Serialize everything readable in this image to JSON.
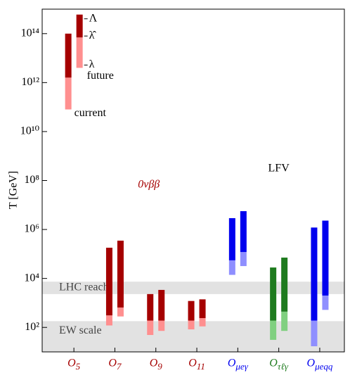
{
  "chart_data": {
    "type": "range_bar",
    "y_label": "T [GeV]",
    "log_y": true,
    "grid": false,
    "ylim": [
      10,
      1000000000000000.0
    ],
    "yticks": [
      {
        "value": 100,
        "label": "10²"
      },
      {
        "value": 10000,
        "label": "10⁴"
      },
      {
        "value": 1000000,
        "label": "10⁶"
      },
      {
        "value": 100000000,
        "label": "10⁸"
      },
      {
        "value": 10000000000,
        "label": "10¹⁰"
      },
      {
        "value": 1000000000000,
        "label": "10¹²"
      },
      {
        "value": 100000000000000,
        "label": "10¹⁴"
      }
    ],
    "categories": [
      "O5",
      "O7",
      "O9",
      "O11",
      "Oμeγ",
      "Oτℓγ",
      "Oμeqq"
    ],
    "dark_colors": [
      "#a50000",
      "#a50000",
      "#a50000",
      "#a50000",
      "#0000ee",
      "#1e7b1e",
      "#0000ee"
    ],
    "light_colors": [
      "#ff8f8f",
      "#ff8f8f",
      "#ff8f8f",
      "#ff8f8f",
      "#8f8fff",
      "#80d080",
      "#8f8fff"
    ],
    "series": [
      {
        "name": "current",
        "high": [
          100000000000000.0,
          180000,
          2300,
          1200,
          2900000,
          28000,
          1200000
        ],
        "mid": [
          1600000000000.0,
          310,
          190,
          190,
          55000,
          190,
          190
        ],
        "low": [
          80000000000.0,
          120,
          49,
          83,
          14000,
          31,
          17
        ]
      },
      {
        "name": "future",
        "high": [
          600000000000000.0,
          350000,
          3400,
          1400,
          5600000,
          71000,
          2300000
        ],
        "mid": [
          70000000000000.0,
          650,
          190,
          240,
          120000,
          440,
          2000
        ],
        "low": [
          4000000000000.0,
          280,
          72,
          110,
          32000,
          72,
          520
        ]
      }
    ],
    "legend_symbols": [
      "Λ",
      "λ̂",
      "λ"
    ],
    "bands": [
      {
        "label": "LHC reach",
        "range": [
          2300,
          7400
        ]
      },
      {
        "label": "EW scale",
        "range": [
          10,
          180
        ]
      }
    ],
    "annotations": [
      {
        "text": "0νββ",
        "color": "#a50000"
      },
      {
        "text": "LFV",
        "color": "#000000"
      }
    ]
  }
}
